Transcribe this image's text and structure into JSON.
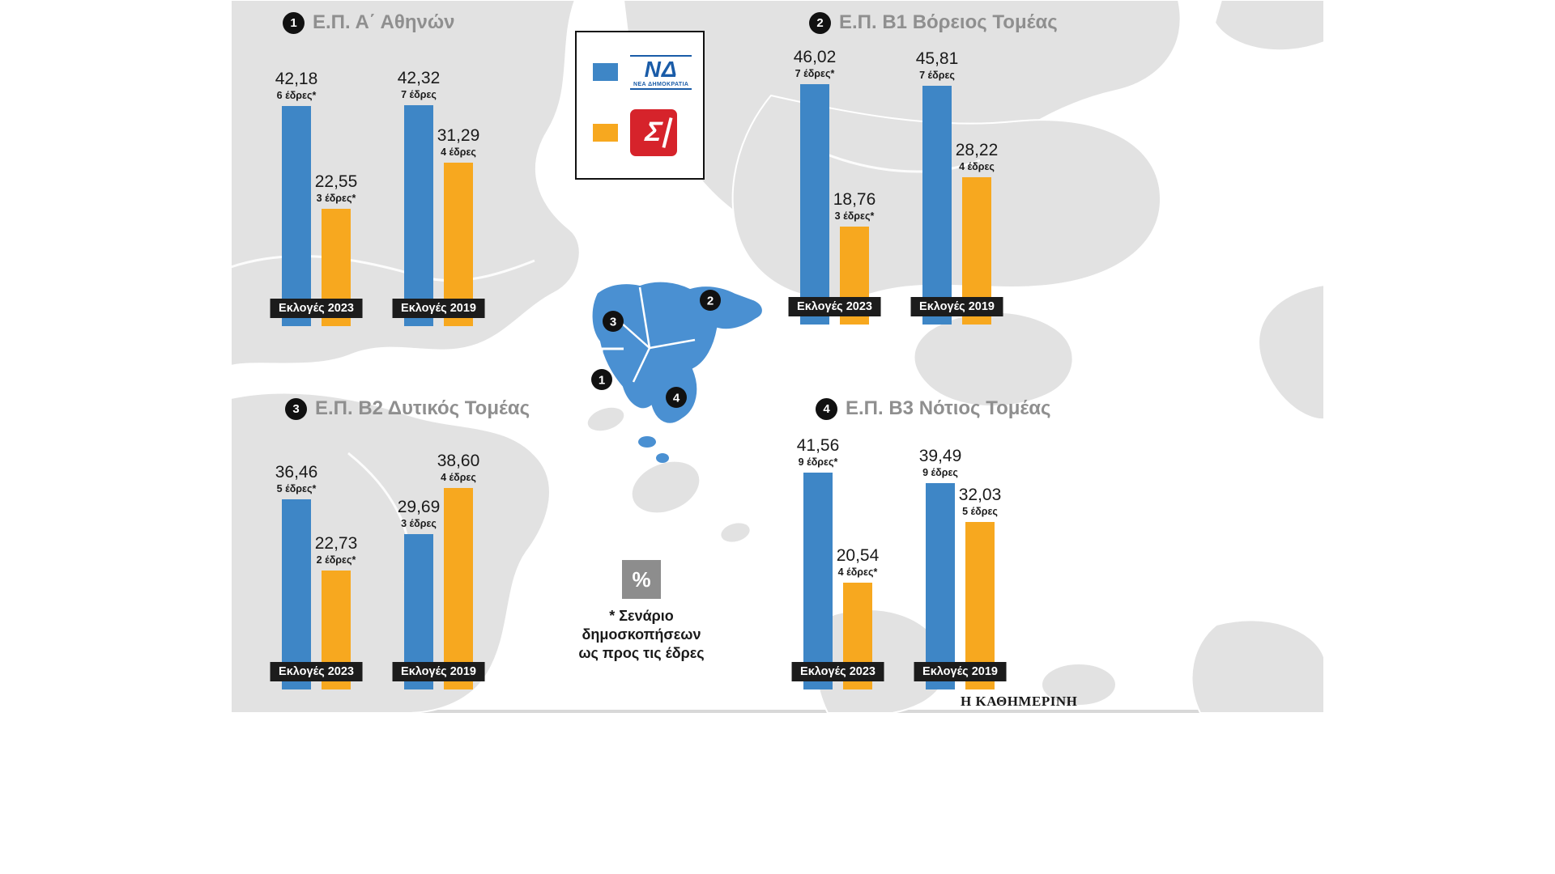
{
  "meta": {
    "source": "Η ΚΑΘΗΜΕΡΙΝΗ"
  },
  "legend": {
    "nd_abbr": "ΝΔ",
    "nd_name": "ΝΕΑ ΔΗΜΟΚΡΑΤΙΑ",
    "syriza_glyph": "Σ"
  },
  "footnote": {
    "symbol": "%",
    "text": "* Σενάριο\nδημοσκοπήσεων\nως προς τις έδρες"
  },
  "map": {
    "markers": [
      {
        "label": "1"
      },
      {
        "label": "2"
      },
      {
        "label": "3"
      },
      {
        "label": "4"
      }
    ],
    "region_color": "#4a90d2",
    "land_color": "#e2e2e2"
  },
  "chart_data": {
    "type": "bar",
    "unit": "%",
    "ylim": [
      0,
      50
    ],
    "legend_position": "top-center",
    "parties": [
      {
        "id": "nd",
        "name": "ΝΕΑ ΔΗΜΟΚΡΑΤΙΑ",
        "color": "#3e86c6"
      },
      {
        "id": "syriza",
        "name": "ΣΥΡΙΖΑ",
        "color": "#f7a81f"
      }
    ],
    "groups": [
      {
        "id": "1",
        "title": "Ε.Π. Α΄ Αθηνών",
        "elections": [
          {
            "label": "Εκλογές 2023",
            "bars": [
              {
                "party": "nd",
                "value": 42.18,
                "value_label": "42,18",
                "seats_label": "6 έδρες*"
              },
              {
                "party": "syriza",
                "value": 22.55,
                "value_label": "22,55",
                "seats_label": "3 έδρες*"
              }
            ]
          },
          {
            "label": "Εκλογές 2019",
            "bars": [
              {
                "party": "nd",
                "value": 42.32,
                "value_label": "42,32",
                "seats_label": "7 έδρες"
              },
              {
                "party": "syriza",
                "value": 31.29,
                "value_label": "31,29",
                "seats_label": "4 έδρες"
              }
            ]
          }
        ]
      },
      {
        "id": "2",
        "title": "Ε.Π. Β1 Βόρειος Τομέας",
        "elections": [
          {
            "label": "Εκλογές 2023",
            "bars": [
              {
                "party": "nd",
                "value": 46.02,
                "value_label": "46,02",
                "seats_label": "7 έδρες*"
              },
              {
                "party": "syriza",
                "value": 18.76,
                "value_label": "18,76",
                "seats_label": "3 έδρες*"
              }
            ]
          },
          {
            "label": "Εκλογές 2019",
            "bars": [
              {
                "party": "nd",
                "value": 45.81,
                "value_label": "45,81",
                "seats_label": "7 έδρες"
              },
              {
                "party": "syriza",
                "value": 28.22,
                "value_label": "28,22",
                "seats_label": "4 έδρες"
              }
            ]
          }
        ]
      },
      {
        "id": "3",
        "title": "Ε.Π. Β2 Δυτικός Τομέας",
        "elections": [
          {
            "label": "Εκλογές 2023",
            "bars": [
              {
                "party": "nd",
                "value": 36.46,
                "value_label": "36,46",
                "seats_label": "5 έδρες*"
              },
              {
                "party": "syriza",
                "value": 22.73,
                "value_label": "22,73",
                "seats_label": "2 έδρες*"
              }
            ]
          },
          {
            "label": "Εκλογές 2019",
            "bars": [
              {
                "party": "nd",
                "value": 29.69,
                "value_label": "29,69",
                "seats_label": "3 έδρες"
              },
              {
                "party": "syriza",
                "value": 38.6,
                "value_label": "38,60",
                "seats_label": "4 έδρες"
              }
            ]
          }
        ]
      },
      {
        "id": "4",
        "title": "Ε.Π. Β3 Νότιος Τομέας",
        "elections": [
          {
            "label": "Εκλογές 2023",
            "bars": [
              {
                "party": "nd",
                "value": 41.56,
                "value_label": "41,56",
                "seats_label": "9 έδρες*"
              },
              {
                "party": "syriza",
                "value": 20.54,
                "value_label": "20,54",
                "seats_label": "4 έδρες*"
              }
            ]
          },
          {
            "label": "Εκλογές 2019",
            "bars": [
              {
                "party": "nd",
                "value": 39.49,
                "value_label": "39,49",
                "seats_label": "9 έδρες"
              },
              {
                "party": "syriza",
                "value": 32.03,
                "value_label": "32,03",
                "seats_label": "5 έδρες"
              }
            ]
          }
        ]
      }
    ]
  }
}
